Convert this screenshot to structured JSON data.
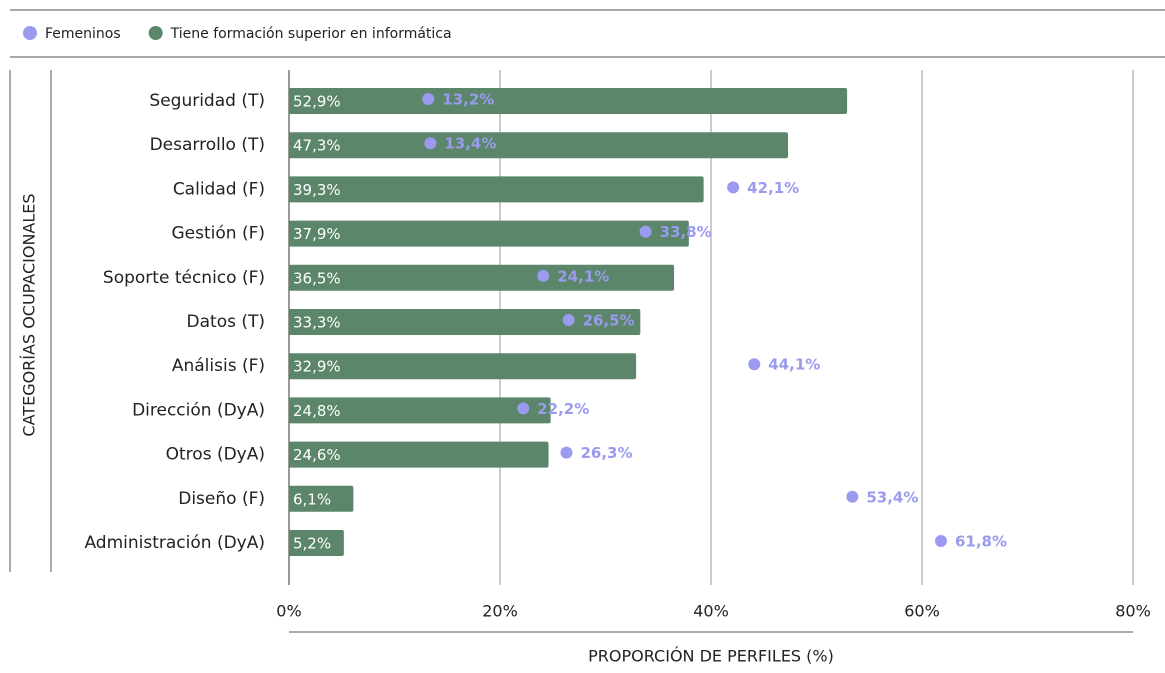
{
  "chart_data": {
    "type": "bar",
    "orientation": "horizontal",
    "categories": [
      "Seguridad (T)",
      "Desarrollo (T)",
      "Calidad (F)",
      "Gestión (F)",
      "Soporte técnico (F)",
      "Datos (T)",
      "Análisis (F)",
      "Dirección (DyA)",
      "Otros (DyA)",
      "Diseño (F)",
      "Administración (DyA)"
    ],
    "series": [
      {
        "name": "Femeninos",
        "mark": "dot",
        "color": "#9a9bef",
        "values": [
          13.2,
          13.4,
          42.1,
          33.8,
          24.1,
          26.5,
          44.1,
          22.2,
          26.3,
          53.4,
          61.8
        ],
        "value_labels": [
          "13,2%",
          "13,4%",
          "42,1%",
          "33,8%",
          "24,1%",
          "26,5%",
          "44,1%",
          "22,2%",
          "26,3%",
          "53,4%",
          "61,8%"
        ]
      },
      {
        "name": "Tiene formación superior en informática",
        "mark": "bar",
        "color": "#5b866a",
        "values": [
          52.9,
          47.3,
          39.3,
          37.9,
          36.5,
          33.3,
          32.9,
          24.8,
          24.6,
          6.1,
          5.2
        ],
        "value_labels": [
          "52,9%",
          "47,3%",
          "39,3%",
          "37,9%",
          "36,5%",
          "33,3%",
          "32,9%",
          "24,8%",
          "24,6%",
          "6,1%",
          "5,2%"
        ]
      }
    ],
    "xlim": [
      0,
      80
    ],
    "xticks": [
      {
        "value": 0,
        "label": "0%"
      },
      {
        "value": 20,
        "label": "20%"
      },
      {
        "value": 40,
        "label": "40%"
      },
      {
        "value": 60,
        "label": "60%"
      },
      {
        "value": 80,
        "label": "80%"
      }
    ],
    "x_label": "PROPORCIÓN DE PERFILES (%)",
    "y_label": "CATEGORÍAS OCUPACIONALES",
    "grid": true,
    "legend": "top"
  }
}
